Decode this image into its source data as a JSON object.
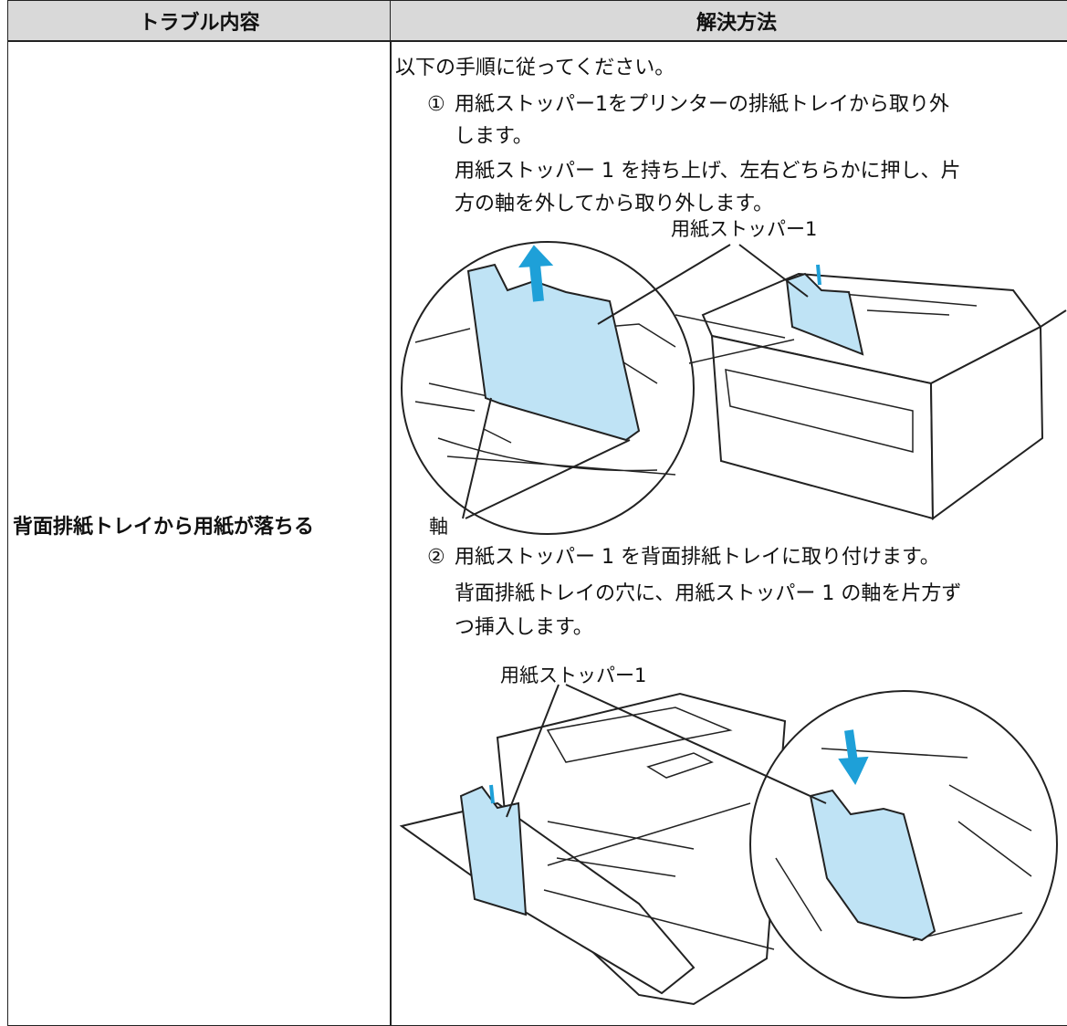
{
  "table": {
    "header": [
      "トラブル内容",
      "解決方法"
    ],
    "rows": [
      {
        "problem": "背面排紙トレイから用紙が落ちる",
        "solution": {
          "intro": "以下の手順に従ってください。",
          "steps": [
            {
              "number": "①",
              "lines": [
                "用紙ストッパー1をプリンターの排紙トレイから取り外",
                "します。"
              ],
              "detail": [
                "用紙ストッパー 1 を持ち上げ、左右どちらかに押し、片",
                "方の軸を外してから取り外します。"
              ],
              "figure_labels": [
                "用紙ストッパー1",
                "軸"
              ]
            },
            {
              "number": "②",
              "lines": [
                "用紙ストッパー 1 を背面排紙トレイに取り付けます。"
              ],
              "detail": [
                "背面排紙トレイの穴に、用紙ストッパー 1 の軸を片方ず",
                "つ挿入します。"
              ],
              "figure_labels": [
                "用紙ストッパー1"
              ]
            }
          ]
        }
      }
    ]
  }
}
